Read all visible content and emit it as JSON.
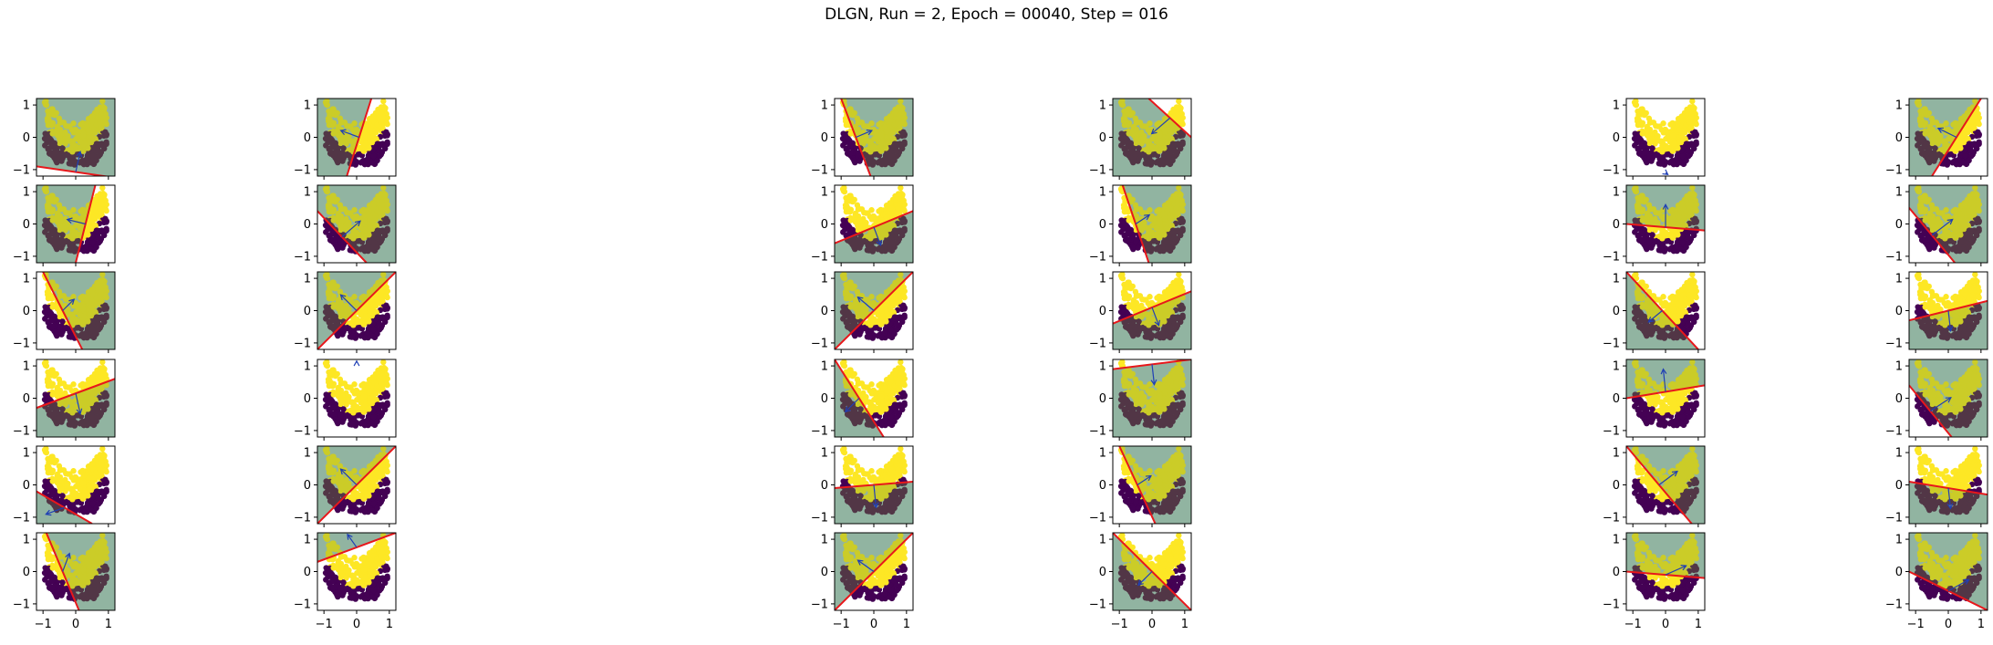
{
  "figure": {
    "title": "DLGN, Run = 2, Epoch = 00040, Step = 016"
  },
  "colors": {
    "class_low": "#440154",
    "class_high": "#fde725",
    "region_a": "#6d9c2e",
    "region_b": "#5b8fc4",
    "boundary_line": "#e8171b",
    "arrow": "#1f3fb5"
  },
  "chart_data": {
    "type": "scatter",
    "grid": {
      "rows": 6,
      "cols": 6
    },
    "xlim": [
      -1.2,
      1.2
    ],
    "ylim": [
      -1.2,
      1.2
    ],
    "ticks": [
      -1,
      0,
      1
    ],
    "tick_labels": [
      "−1",
      "0",
      "1"
    ],
    "decision_boundary": "y = x^2 - 0.5",
    "panels": [
      [
        {
          "a": [
            -1.2,
            -0.9
          ],
          "b": [
            1.2,
            -1.25
          ],
          "v": [
            0.2,
            0.9
          ]
        },
        {
          "a": [
            -0.3,
            -1.2
          ],
          "b": [
            0.45,
            1.2
          ],
          "v": [
            -0.8,
            0.3
          ]
        },
        {
          "a": [
            -1.0,
            1.2
          ],
          "b": [
            -0.1,
            -1.2
          ],
          "v": [
            0.7,
            0.3
          ]
        },
        {
          "a": [
            -0.1,
            1.2
          ],
          "b": [
            1.2,
            0.0
          ],
          "v": [
            -0.8,
            -0.7
          ]
        },
        {
          "a": [
            -1.2,
            -1.3
          ],
          "b": [
            1.2,
            -1.3
          ],
          "v": [
            0.1,
            -0.9
          ]
        },
        {
          "a": [
            -0.5,
            -1.2
          ],
          "b": [
            1.0,
            1.2
          ],
          "v": [
            -0.8,
            0.4
          ]
        }
      ],
      [
        {
          "a": [
            0.0,
            -1.2
          ],
          "b": [
            0.6,
            1.2
          ],
          "v": [
            -0.8,
            0.2
          ]
        },
        {
          "a": [
            -1.2,
            0.4
          ],
          "b": [
            0.3,
            -1.2
          ],
          "v": [
            0.8,
            0.7
          ]
        },
        {
          "a": [
            -1.2,
            -0.6
          ],
          "b": [
            1.2,
            0.4
          ],
          "v": [
            0.3,
            -0.8
          ]
        },
        {
          "a": [
            -0.9,
            1.2
          ],
          "b": [
            -0.1,
            -1.2
          ],
          "v": [
            0.6,
            0.4
          ]
        },
        {
          "a": [
            -1.2,
            0.0
          ],
          "b": [
            1.2,
            -0.2
          ],
          "v": [
            0.0,
            1.0
          ]
        },
        {
          "a": [
            -1.2,
            0.5
          ],
          "b": [
            0.2,
            -1.2
          ],
          "v": [
            0.9,
            0.7
          ]
        }
      ],
      [
        {
          "a": [
            -1.0,
            1.2
          ],
          "b": [
            0.2,
            -1.2
          ],
          "v": [
            0.5,
            0.5
          ]
        },
        {
          "a": [
            -1.2,
            -1.2
          ],
          "b": [
            1.2,
            1.2
          ],
          "v": [
            -0.7,
            0.7
          ]
        },
        {
          "a": [
            -1.2,
            -1.2
          ],
          "b": [
            1.2,
            1.2
          ],
          "v": [
            -0.7,
            0.6
          ]
        },
        {
          "a": [
            -1.2,
            -0.4
          ],
          "b": [
            1.2,
            0.6
          ],
          "v": [
            0.3,
            -0.8
          ]
        },
        {
          "a": [
            -1.2,
            1.2
          ],
          "b": [
            1.0,
            -1.2
          ],
          "v": [
            -0.6,
            -0.5
          ]
        },
        {
          "a": [
            -1.2,
            -0.3
          ],
          "b": [
            1.2,
            0.3
          ],
          "v": [
            0.1,
            -0.9
          ]
        }
      ],
      [
        {
          "a": [
            -1.2,
            -0.3
          ],
          "b": [
            1.2,
            0.6
          ],
          "v": [
            0.2,
            -0.9
          ]
        },
        {
          "a": [
            -1.2,
            1.35
          ],
          "b": [
            1.2,
            1.35
          ],
          "v": [
            0.0,
            0.8
          ]
        },
        {
          "a": [
            -1.2,
            1.2
          ],
          "b": [
            0.3,
            -1.2
          ],
          "v": [
            -0.6,
            -0.6
          ]
        },
        {
          "a": [
            -1.2,
            0.9
          ],
          "b": [
            1.2,
            1.2
          ],
          "v": [
            0.1,
            -0.9
          ]
        },
        {
          "a": [
            -1.2,
            0.0
          ],
          "b": [
            1.2,
            0.4
          ],
          "v": [
            -0.1,
            1.0
          ]
        },
        {
          "a": [
            -1.2,
            0.4
          ],
          "b": [
            0.1,
            -1.2
          ],
          "v": [
            0.9,
            0.6
          ]
        }
      ],
      [
        {
          "a": [
            -1.2,
            -0.2
          ],
          "b": [
            0.5,
            -1.2
          ],
          "v": [
            -0.8,
            -0.3
          ]
        },
        {
          "a": [
            -1.2,
            -1.2
          ],
          "b": [
            1.2,
            1.2
          ],
          "v": [
            -0.7,
            0.7
          ]
        },
        {
          "a": [
            -1.2,
            -0.1
          ],
          "b": [
            1.2,
            0.1
          ],
          "v": [
            0.1,
            -1.0
          ]
        },
        {
          "a": [
            -1.0,
            1.2
          ],
          "b": [
            0.1,
            -1.2
          ],
          "v": [
            0.6,
            0.4
          ]
        },
        {
          "a": [
            -1.2,
            1.2
          ],
          "b": [
            0.8,
            -1.2
          ],
          "v": [
            0.8,
            0.6
          ]
        },
        {
          "a": [
            -1.2,
            0.1
          ],
          "b": [
            1.2,
            -0.3
          ],
          "v": [
            0.1,
            -0.9
          ]
        }
      ],
      [
        {
          "a": [
            -0.9,
            1.2
          ],
          "b": [
            0.1,
            -1.2
          ],
          "v": [
            0.3,
            0.8
          ]
        },
        {
          "a": [
            -1.2,
            0.3
          ],
          "b": [
            1.2,
            1.2
          ],
          "v": [
            -0.4,
            0.9
          ]
        },
        {
          "a": [
            -1.2,
            -1.2
          ],
          "b": [
            1.2,
            1.2
          ],
          "v": [
            -0.7,
            0.5
          ]
        },
        {
          "a": [
            -1.2,
            1.2
          ],
          "b": [
            1.2,
            -1.2
          ],
          "v": [
            -0.6,
            -0.6
          ]
        },
        {
          "a": [
            -1.2,
            0.0
          ],
          "b": [
            1.2,
            -0.2
          ],
          "v": [
            0.9,
            0.4
          ]
        },
        {
          "a": [
            -1.2,
            0.0
          ],
          "b": [
            1.2,
            -1.2
          ],
          "v": [
            0.9,
            0.5
          ]
        }
      ]
    ]
  }
}
